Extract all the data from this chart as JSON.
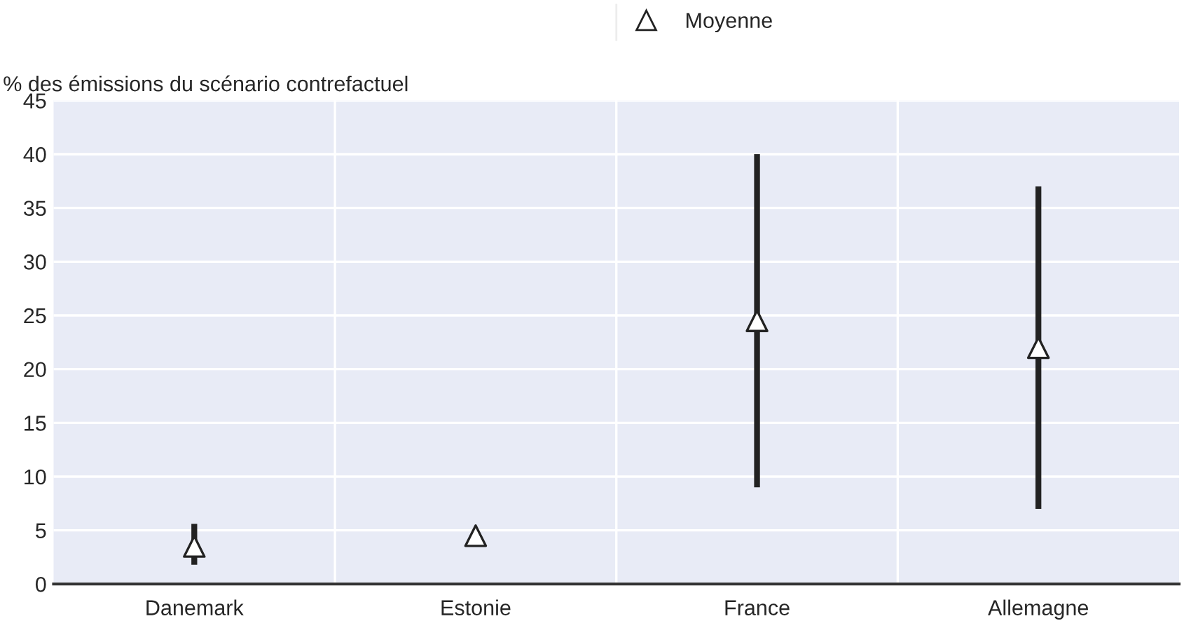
{
  "chart_data": {
    "type": "scatter",
    "ylabel": "% des émissions du scénario contrefactuel",
    "categories": [
      "Danemark",
      "Estonie",
      "France",
      "Allemagne"
    ],
    "series": [
      {
        "name": "Moyenne",
        "color": "#ffffff",
        "values": [
          3.5,
          4.5,
          24.5,
          22
        ],
        "errors": [
          [
            1.8,
            5.6
          ],
          null,
          [
            9,
            40
          ],
          [
            7,
            37
          ]
        ]
      }
    ],
    "ylim": [
      0,
      45
    ],
    "yticks": [
      0,
      5,
      10,
      15,
      20,
      25,
      30,
      35,
      40,
      45
    ],
    "grid": true,
    "legend": "top",
    "marker": "triangle"
  }
}
